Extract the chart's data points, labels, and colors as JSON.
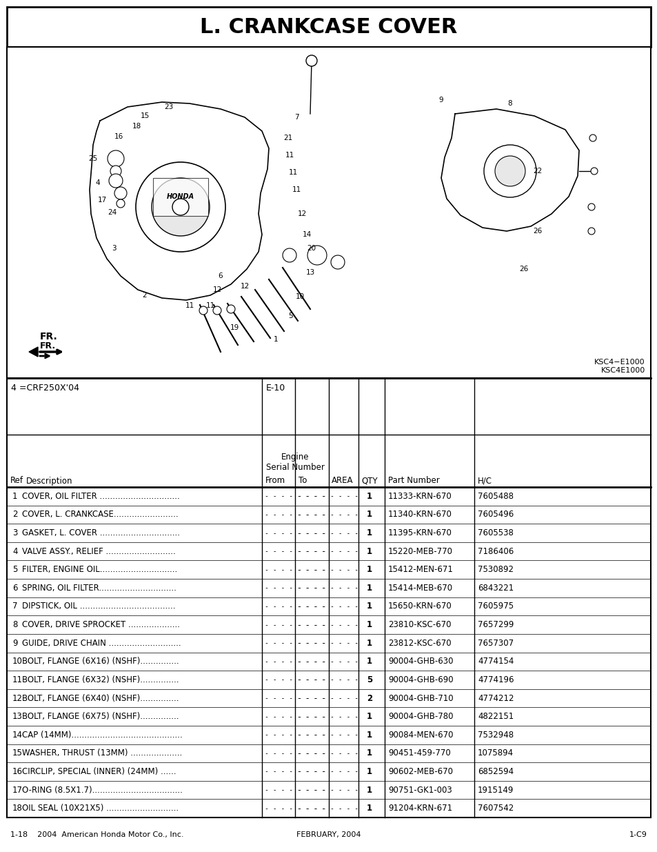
{
  "title": "L. CRANKCASE COVER",
  "bg_color": "#ffffff",
  "ksc_label1": "KSC4−E1000",
  "ksc_label2": "KSC4E1000",
  "model_label": "4 =CRF250X'04",
  "engine_serial_from": "E-10",
  "col_headers": [
    "Ref",
    "Description",
    "From",
    "To",
    "AREA",
    "QTY",
    "Part Number",
    "H/C"
  ],
  "rows": [
    [
      "1",
      "COVER, OIL FILTER ...............................",
      "1",
      "11333-KRN-670",
      "7605488"
    ],
    [
      "2",
      "COVER, L. CRANKCASE.........................",
      "1",
      "11340-KRN-670",
      "7605496"
    ],
    [
      "3",
      "GASKET, L. COVER ...............................",
      "1",
      "11395-KRN-670",
      "7605538"
    ],
    [
      "4",
      "VALVE ASSY., RELIEF ...........................",
      "1",
      "15220-MEB-770",
      "7186406"
    ],
    [
      "5",
      "FILTER, ENGINE OIL..............................",
      "1",
      "15412-MEN-671",
      "7530892"
    ],
    [
      "6",
      "SPRING, OIL FILTER..............................",
      "1",
      "15414-MEB-670",
      "6843221"
    ],
    [
      "7",
      "DIPSTICK, OIL .....................................",
      "1",
      "15650-KRN-670",
      "7605975"
    ],
    [
      "8",
      "COVER, DRIVE SPROCKET ....................",
      "1",
      "23810-KSC-670",
      "7657299"
    ],
    [
      "9",
      "GUIDE, DRIVE CHAIN ............................",
      "1",
      "23812-KSC-670",
      "7657307"
    ],
    [
      "10",
      "BOLT, FLANGE (6X16) (NSHF)...............",
      "1",
      "90004-GHB-630",
      "4774154"
    ],
    [
      "11",
      "BOLT, FLANGE (6X32) (NSHF)...............",
      "5",
      "90004-GHB-690",
      "4774196"
    ],
    [
      "12",
      "BOLT, FLANGE (6X40) (NSHF)...............",
      "2",
      "90004-GHB-710",
      "4774212"
    ],
    [
      "13",
      "BOLT, FLANGE (6X75) (NSHF)...............",
      "1",
      "90004-GHB-780",
      "4822151"
    ],
    [
      "14",
      "CAP (14MM)...........................................",
      "1",
      "90084-MEN-670",
      "7532948"
    ],
    [
      "15",
      "WASHER, THRUST (13MM) ....................",
      "1",
      "90451-459-770",
      "1075894"
    ],
    [
      "16",
      "CIRCLIP, SPECIAL (INNER) (24MM) ......",
      "1",
      "90602-MEB-670",
      "6852594"
    ],
    [
      "17",
      "O-RING (8.5X1.7)...................................",
      "1",
      "90751-GK1-003",
      "1915149"
    ],
    [
      "18",
      "OIL SEAL (10X21X5) ............................",
      "1",
      "91204-KRN-671",
      "7607542"
    ]
  ],
  "footer_left": "1-18    2004  American Honda Motor Co., Inc.",
  "footer_center": "FEBRUARY, 2004",
  "footer_right": "1-C9"
}
